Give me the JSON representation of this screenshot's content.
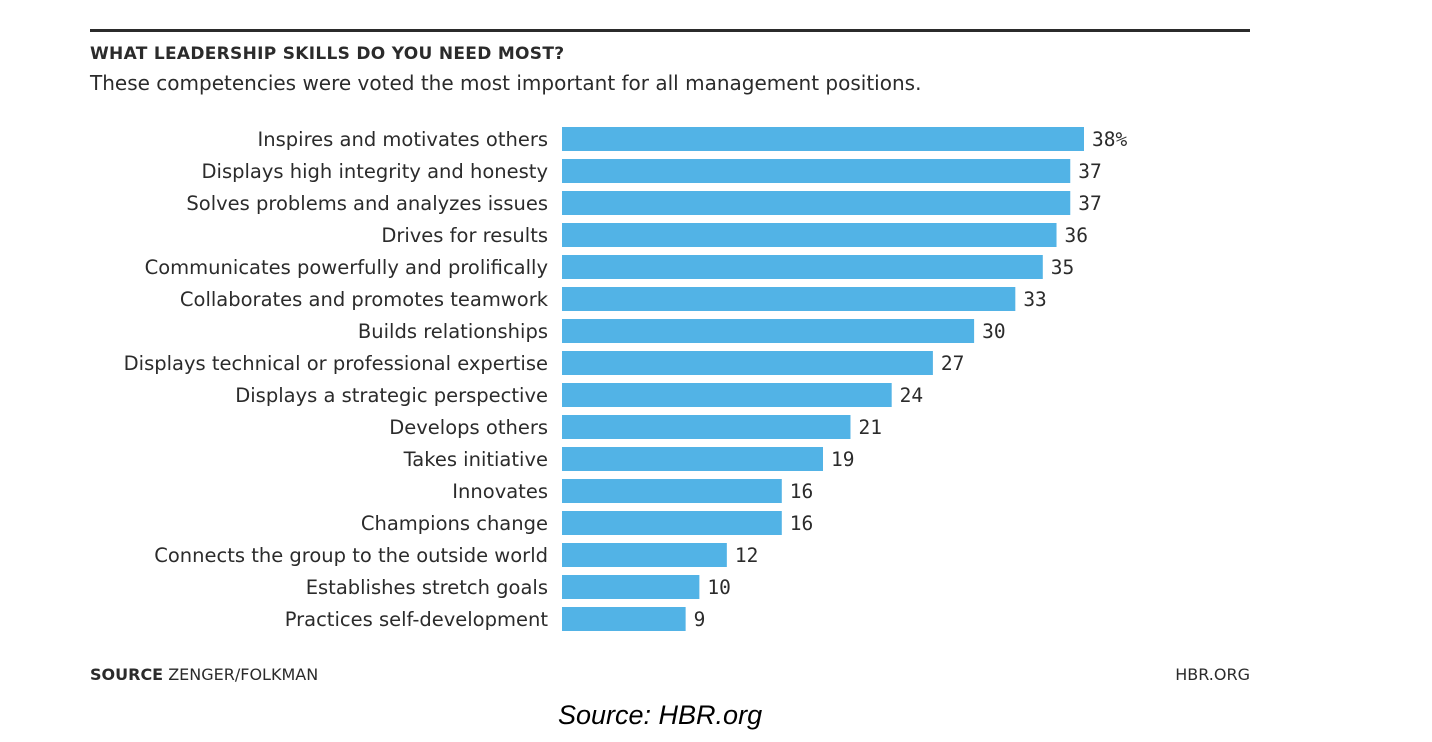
{
  "header": {
    "title": "WHAT LEADERSHIP SKILLS DO YOU NEED MOST?",
    "subtitle": "These competencies were voted the most important for all management positions."
  },
  "footer": {
    "source_key": "SOURCE",
    "source_value": "ZENGER/FOLKMAN",
    "brand": "HBR.ORG"
  },
  "caption": "Source: HBR.org",
  "colors": {
    "bar": "#52b3e6",
    "text": "#2b2b2b"
  },
  "chart_data": {
    "type": "bar",
    "orientation": "horizontal",
    "title": "WHAT LEADERSHIP SKILLS DO YOU NEED MOST?",
    "subtitle": "These competencies were voted the most important for all management positions.",
    "unit": "%",
    "categories": [
      "Inspires and motivates others",
      "Displays high integrity and honesty",
      "Solves problems and analyzes issues",
      "Drives for results",
      "Communicates powerfully and prolifically",
      "Collaborates and promotes teamwork",
      "Builds relationships",
      "Displays technical or professional expertise",
      "Displays a strategic perspective",
      "Develops others",
      "Takes initiative",
      "Innovates",
      "Champions change",
      "Connects the group to the outside world",
      "Establishes stretch goals",
      "Practices self-development"
    ],
    "values": [
      38,
      37,
      37,
      36,
      35,
      33,
      30,
      27,
      24,
      21,
      19,
      16,
      16,
      12,
      10,
      9
    ],
    "value_labels": [
      "38%",
      "37",
      "37",
      "36",
      "35",
      "33",
      "30",
      "27",
      "24",
      "21",
      "19",
      "16",
      "16",
      "12",
      "10",
      "9"
    ],
    "xlim": [
      0,
      38
    ],
    "grid": false,
    "legend": "none"
  }
}
